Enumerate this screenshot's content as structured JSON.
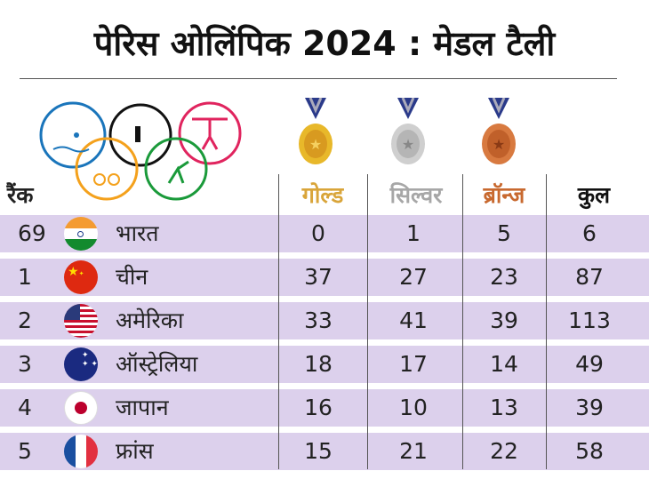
{
  "title": "पेरिस ओलिंपिक 2024 : मेडल टैली",
  "headers": {
    "rank": "रैंक",
    "gold": "गोल्ड",
    "silver": "सिल्वर",
    "bronze": "ब्रॉन्ज",
    "total": "कुल"
  },
  "colors": {
    "gold": "#d9a53a",
    "silver": "#a7a7a7",
    "bronze": "#c8692f",
    "row_bg": "#dcd0ec"
  },
  "icons": [
    "olympic-rings-sports-icon",
    "gold-medal-icon",
    "silver-medal-icon",
    "bronze-medal-icon"
  ],
  "rows": [
    {
      "rank": "69",
      "country": "भारत",
      "flag": "india",
      "gold": "0",
      "silver": "1",
      "bronze": "5",
      "total": "6"
    },
    {
      "rank": "1",
      "country": "चीन",
      "flag": "china",
      "gold": "37",
      "silver": "27",
      "bronze": "23",
      "total": "87"
    },
    {
      "rank": "2",
      "country": "अमेरिका",
      "flag": "usa",
      "gold": "33",
      "silver": "41",
      "bronze": "39",
      "total": "113"
    },
    {
      "rank": "3",
      "country": "ऑस्ट्रेलिया",
      "flag": "australia",
      "gold": "18",
      "silver": "17",
      "bronze": "14",
      "total": "49"
    },
    {
      "rank": "4",
      "country": "जापान",
      "flag": "japan",
      "gold": "16",
      "silver": "10",
      "bronze": "13",
      "total": "39"
    },
    {
      "rank": "5",
      "country": "फ्रांस",
      "flag": "france",
      "gold": "15",
      "silver": "21",
      "bronze": "22",
      "total": "58"
    }
  ]
}
